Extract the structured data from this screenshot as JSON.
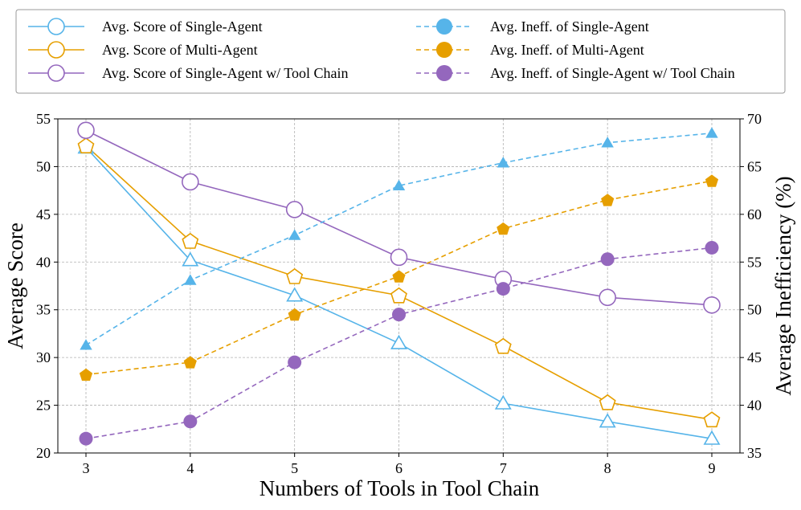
{
  "chart_data": {
    "type": "line",
    "xlabel": "Numbers of Tools in Tool Chain",
    "ylabel_left": "Average Score",
    "ylabel_right": "Average Inefficiency (%)",
    "x": [
      3,
      4,
      5,
      6,
      7,
      8,
      9
    ],
    "x_ticks": [
      "3",
      "4",
      "5",
      "6",
      "7",
      "8",
      "9"
    ],
    "ylim_left": [
      20,
      55
    ],
    "yticks_left": [
      "20",
      "25",
      "30",
      "35",
      "40",
      "45",
      "50",
      "55"
    ],
    "ylim_right": [
      35,
      70
    ],
    "yticks_right": [
      "35",
      "40",
      "45",
      "50",
      "55",
      "60",
      "65",
      "70"
    ],
    "grid": true,
    "legend_position": "top",
    "series": [
      {
        "name": "Avg. Score of Single-Agent",
        "axis": "left",
        "style": "solid",
        "marker": "triangle",
        "filled": false,
        "color": "#56B4E9",
        "values": [
          52.0,
          40.2,
          36.5,
          31.5,
          25.2,
          23.3,
          21.5
        ]
      },
      {
        "name": "Avg. Score of Multi-Agent",
        "axis": "left",
        "style": "solid",
        "marker": "pentagon",
        "filled": false,
        "color": "#E69F00",
        "values": [
          52.2,
          42.2,
          38.5,
          36.5,
          31.2,
          25.3,
          23.5
        ]
      },
      {
        "name": "Avg. Score of Single-Agent w/ Tool Chain",
        "axis": "left",
        "style": "solid",
        "marker": "circle",
        "filled": false,
        "color": "#9467BD",
        "values": [
          53.8,
          48.4,
          45.5,
          40.5,
          38.2,
          36.3,
          35.5
        ]
      },
      {
        "name": "Avg. Ineff. of Single-Agent",
        "axis": "right",
        "style": "dashed",
        "marker": "triangle",
        "filled": true,
        "color": "#56B4E9",
        "values": [
          46.3,
          53.1,
          57.8,
          63.0,
          65.4,
          67.5,
          68.5
        ]
      },
      {
        "name": "Avg. Ineff. of Multi-Agent",
        "axis": "right",
        "style": "dashed",
        "marker": "pentagon",
        "filled": true,
        "color": "#E69F00",
        "values": [
          43.2,
          44.5,
          49.5,
          53.5,
          58.5,
          61.5,
          63.5
        ]
      },
      {
        "name": "Avg. Ineff. of Single-Agent w/ Tool Chain",
        "axis": "right",
        "style": "dashed",
        "marker": "circle",
        "filled": true,
        "color": "#9467BD",
        "values": [
          36.5,
          38.3,
          44.5,
          49.5,
          52.2,
          55.3,
          56.5
        ]
      }
    ]
  }
}
